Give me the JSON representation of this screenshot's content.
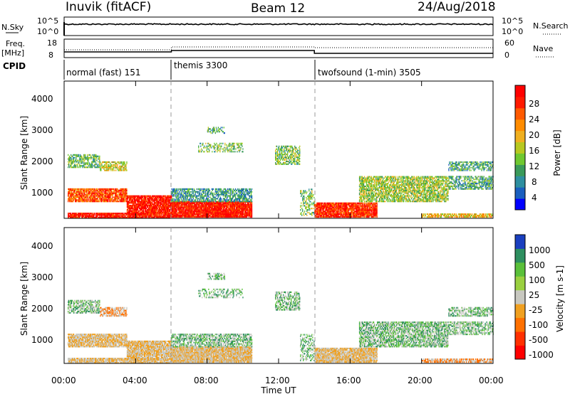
{
  "header": {
    "station": "Inuvik (fitACF)",
    "beam": "Beam 12",
    "date": "24/Aug/2018"
  },
  "panel_labels": {
    "nsky": "N.Sky",
    "nsearch": "N.Search",
    "freq_top": "Freq.",
    "freq_unit": "[MHz]",
    "nave": "Nave",
    "cpid": "CPID"
  },
  "nsky_ticks": [
    "10^5",
    "10^0"
  ],
  "nsearch_ticks": [
    "10^5",
    "10^0"
  ],
  "freq_ticks": [
    "18",
    "8"
  ],
  "nave_ticks": [
    "60",
    "0"
  ],
  "cpid_segments": [
    {
      "label": "normal (fast) 151",
      "start_hour": 0
    },
    {
      "label": "themis 3300",
      "start_hour": 6
    },
    {
      "label": "twofsound (1-min) 3505",
      "start_hour": 14
    }
  ],
  "chart_data": [
    {
      "type": "heatmap",
      "ylabel": "Slant Range [km]",
      "ylim": [
        180,
        4600
      ],
      "y_ticks": [
        "1000",
        "2000",
        "3000",
        "4000"
      ],
      "colorbar": {
        "label": "Power [dB]",
        "ticks": [
          "28",
          "24",
          "20",
          "16",
          "12",
          "8",
          "4"
        ],
        "colors": [
          "#0000ff",
          "#1a5fbf",
          "#2e8fa0",
          "#3a9a5a",
          "#6fc830",
          "#b8c820",
          "#f0b020",
          "#ff8c00",
          "#ff5a00",
          "#ff1a00",
          "#ff0000"
        ]
      }
    },
    {
      "type": "heatmap",
      "ylabel": "Slant Range [km]",
      "xlabel": "Time UT",
      "ylim": [
        180,
        4600
      ],
      "y_ticks": [
        "1000",
        "2000",
        "3000",
        "4000"
      ],
      "x_ticks": [
        "00:00",
        "04:00",
        "08:00",
        "12:00",
        "16:00",
        "20:00",
        "00:00"
      ],
      "colorbar": {
        "label": "Velocity [m s-1]",
        "ticks": [
          "1000",
          "500",
          "100",
          "25",
          "-25",
          "-100",
          "-500",
          "-1000"
        ],
        "colors": [
          "#1a3fbf",
          "#2e8f60",
          "#5ac03a",
          "#9ad040",
          "#c8c8c0",
          "#f0a020",
          "#ff7000",
          "#ff3000",
          "#ff0000"
        ]
      }
    }
  ]
}
